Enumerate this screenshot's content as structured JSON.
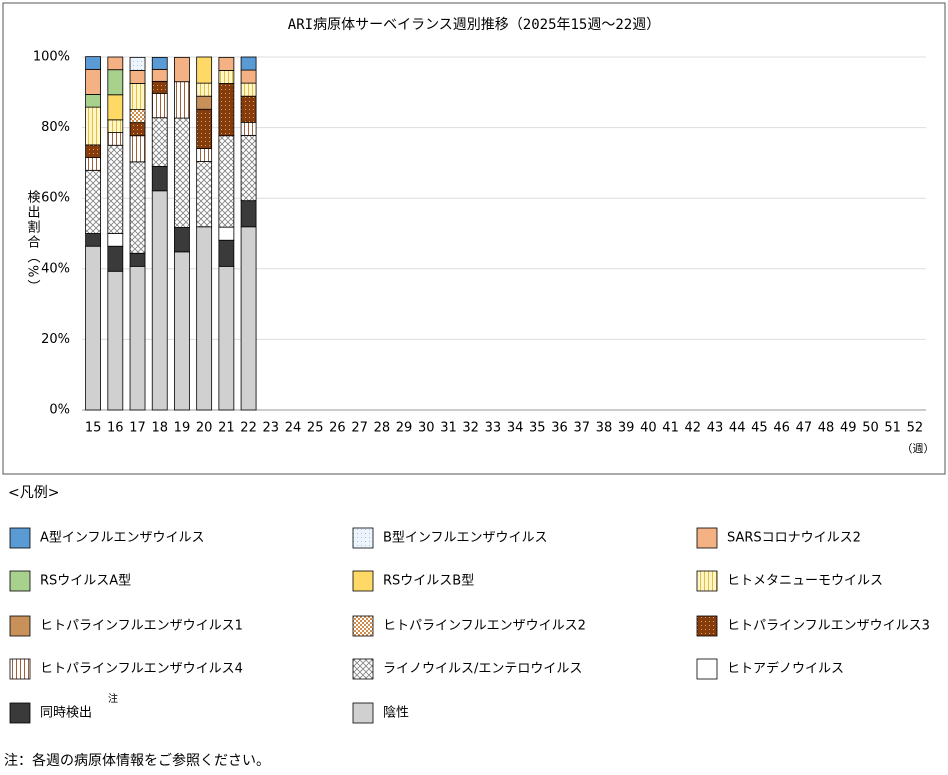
{
  "chart_data": {
    "type": "stacked_bar",
    "title": "ARI病原体サーベイランス週別推移（2025年15週～22週）",
    "y_label": "検出割合（%）",
    "x_unit": "（週）",
    "legend_title": "<凡例>",
    "note_mark": "注",
    "footnote": "注：各週の病原体情報をご参照ください。",
    "categories": [
      "15",
      "16",
      "17",
      "18",
      "19",
      "20",
      "21",
      "22",
      "23",
      "24",
      "25",
      "26",
      "27",
      "28",
      "29",
      "30",
      "31",
      "32",
      "33",
      "34",
      "35",
      "36",
      "37",
      "38",
      "39",
      "40",
      "41",
      "42",
      "43",
      "44",
      "45",
      "46",
      "47",
      "48",
      "49",
      "50",
      "51",
      "52"
    ],
    "ylim": [
      0,
      100
    ],
    "yticks": [
      {
        "value": 0,
        "label": "0%"
      },
      {
        "value": 20,
        "label": "20%"
      },
      {
        "value": 40,
        "label": "40%"
      },
      {
        "value": 60,
        "label": "60%"
      },
      {
        "value": 80,
        "label": "80%"
      },
      {
        "value": 100,
        "label": "100%"
      }
    ],
    "grid": true,
    "series": [
      {
        "name": "A型インフルエンザウイルス",
        "color": "#5b9bd5",
        "pattern": "solid",
        "values": [
          3.6,
          0,
          0,
          3.4,
          0,
          0,
          0,
          3.7,
          null,
          null,
          null,
          null,
          null,
          null,
          null,
          null,
          null,
          null,
          null,
          null,
          null,
          null,
          null,
          null,
          null,
          null,
          null,
          null,
          null,
          null,
          null,
          null,
          null,
          null,
          null,
          null,
          null,
          null
        ]
      },
      {
        "name": "B型インフルエンザウイルス",
        "color": "#9dc3e6",
        "pattern": "dots",
        "values": [
          0,
          0,
          3.7,
          0,
          0,
          0,
          0,
          0,
          null,
          null,
          null,
          null,
          null,
          null,
          null,
          null,
          null,
          null,
          null,
          null,
          null,
          null,
          null,
          null,
          null,
          null,
          null,
          null,
          null,
          null,
          null,
          null,
          null,
          null,
          null,
          null,
          null,
          null
        ]
      },
      {
        "name": "SARSコロナウイルス2",
        "color": "#f4b183",
        "pattern": "solid",
        "values": [
          7.1,
          3.6,
          3.7,
          3.4,
          6.9,
          0,
          3.7,
          3.7,
          null,
          null,
          null,
          null,
          null,
          null,
          null,
          null,
          null,
          null,
          null,
          null,
          null,
          null,
          null,
          null,
          null,
          null,
          null,
          null,
          null,
          null,
          null,
          null,
          null,
          null,
          null,
          null,
          null,
          null
        ]
      },
      {
        "name": "RSウイルスA型",
        "color": "#a9d18e",
        "pattern": "solid",
        "values": [
          3.6,
          7.1,
          0,
          0,
          0,
          0,
          0,
          0,
          null,
          null,
          null,
          null,
          null,
          null,
          null,
          null,
          null,
          null,
          null,
          null,
          null,
          null,
          null,
          null,
          null,
          null,
          null,
          null,
          null,
          null,
          null,
          null,
          null,
          null,
          null,
          null,
          null,
          null
        ]
      },
      {
        "name": "RSウイルスB型",
        "color": "#ffd966",
        "pattern": "solid",
        "values": [
          0,
          7.1,
          0,
          0,
          0,
          7.4,
          0,
          0,
          null,
          null,
          null,
          null,
          null,
          null,
          null,
          null,
          null,
          null,
          null,
          null,
          null,
          null,
          null,
          null,
          null,
          null,
          null,
          null,
          null,
          null,
          null,
          null,
          null,
          null,
          null,
          null,
          null,
          null
        ]
      },
      {
        "name": "ヒトメタニューモウイルス",
        "color": "#e0c040",
        "pattern": "vlines-yellow",
        "values": [
          10.7,
          3.6,
          7.4,
          0,
          0,
          3.7,
          3.7,
          3.7,
          null,
          null,
          null,
          null,
          null,
          null,
          null,
          null,
          null,
          null,
          null,
          null,
          null,
          null,
          null,
          null,
          null,
          null,
          null,
          null,
          null,
          null,
          null,
          null,
          null,
          null,
          null,
          null,
          null,
          null
        ]
      },
      {
        "name": "ヒトパラインフルエンザウイルス1",
        "color": "#c8915a",
        "pattern": "solid",
        "values": [
          0,
          0,
          0,
          0,
          0,
          3.7,
          0,
          0,
          null,
          null,
          null,
          null,
          null,
          null,
          null,
          null,
          null,
          null,
          null,
          null,
          null,
          null,
          null,
          null,
          null,
          null,
          null,
          null,
          null,
          null,
          null,
          null,
          null,
          null,
          null,
          null,
          null,
          null
        ]
      },
      {
        "name": "ヒトパラインフルエンザウイルス2",
        "color": "#d08a4a",
        "pattern": "checker",
        "values": [
          0,
          0,
          3.7,
          0,
          0,
          0,
          0,
          0,
          null,
          null,
          null,
          null,
          null,
          null,
          null,
          null,
          null,
          null,
          null,
          null,
          null,
          null,
          null,
          null,
          null,
          null,
          null,
          null,
          null,
          null,
          null,
          null,
          null,
          null,
          null,
          null,
          null,
          null
        ]
      },
      {
        "name": "ヒトパラインフルエンザウイルス3",
        "color": "#843c0c",
        "pattern": "darkdots",
        "values": [
          3.6,
          0,
          3.7,
          3.4,
          0,
          11.1,
          14.8,
          7.4,
          null,
          null,
          null,
          null,
          null,
          null,
          null,
          null,
          null,
          null,
          null,
          null,
          null,
          null,
          null,
          null,
          null,
          null,
          null,
          null,
          null,
          null,
          null,
          null,
          null,
          null,
          null,
          null,
          null,
          null
        ]
      },
      {
        "name": "ヒトパラインフルエンザウイルス4",
        "color": "#a0603a",
        "pattern": "vlines",
        "values": [
          3.6,
          3.6,
          7.4,
          6.9,
          10.3,
          3.7,
          0,
          3.7,
          null,
          null,
          null,
          null,
          null,
          null,
          null,
          null,
          null,
          null,
          null,
          null,
          null,
          null,
          null,
          null,
          null,
          null,
          null,
          null,
          null,
          null,
          null,
          null,
          null,
          null,
          null,
          null,
          null,
          null
        ]
      },
      {
        "name": "ライノウイルス/エンテロウイルス",
        "color": "#808080",
        "pattern": "cross",
        "values": [
          17.9,
          25,
          25.9,
          13.8,
          31,
          18.5,
          25.9,
          18.5,
          null,
          null,
          null,
          null,
          null,
          null,
          null,
          null,
          null,
          null,
          null,
          null,
          null,
          null,
          null,
          null,
          null,
          null,
          null,
          null,
          null,
          null,
          null,
          null,
          null,
          null,
          null,
          null,
          null,
          null
        ]
      },
      {
        "name": "ヒトアデノウイルス",
        "color": "#ffffff",
        "pattern": "solid",
        "values": [
          0,
          3.6,
          0,
          0,
          0,
          0,
          3.7,
          0,
          null,
          null,
          null,
          null,
          null,
          null,
          null,
          null,
          null,
          null,
          null,
          null,
          null,
          null,
          null,
          null,
          null,
          null,
          null,
          null,
          null,
          null,
          null,
          null,
          null,
          null,
          null,
          null,
          null,
          null
        ]
      },
      {
        "name": "同時検出",
        "color": "#3a3a3a",
        "pattern": "solid",
        "values": [
          3.6,
          7.1,
          3.7,
          6.9,
          6.9,
          0,
          7.4,
          7.4,
          null,
          null,
          null,
          null,
          null,
          null,
          null,
          null,
          null,
          null,
          null,
          null,
          null,
          null,
          null,
          null,
          null,
          null,
          null,
          null,
          null,
          null,
          null,
          null,
          null,
          null,
          null,
          null,
          null,
          null
        ]
      },
      {
        "name": "陰性",
        "color": "#d0d0d0",
        "pattern": "solid",
        "values": [
          46.4,
          39.3,
          40.7,
          62.1,
          44.8,
          51.9,
          40.7,
          51.9,
          null,
          null,
          null,
          null,
          null,
          null,
          null,
          null,
          null,
          null,
          null,
          null,
          null,
          null,
          null,
          null,
          null,
          null,
          null,
          null,
          null,
          null,
          null,
          null,
          null,
          null,
          null,
          null,
          null,
          null
        ]
      }
    ]
  }
}
